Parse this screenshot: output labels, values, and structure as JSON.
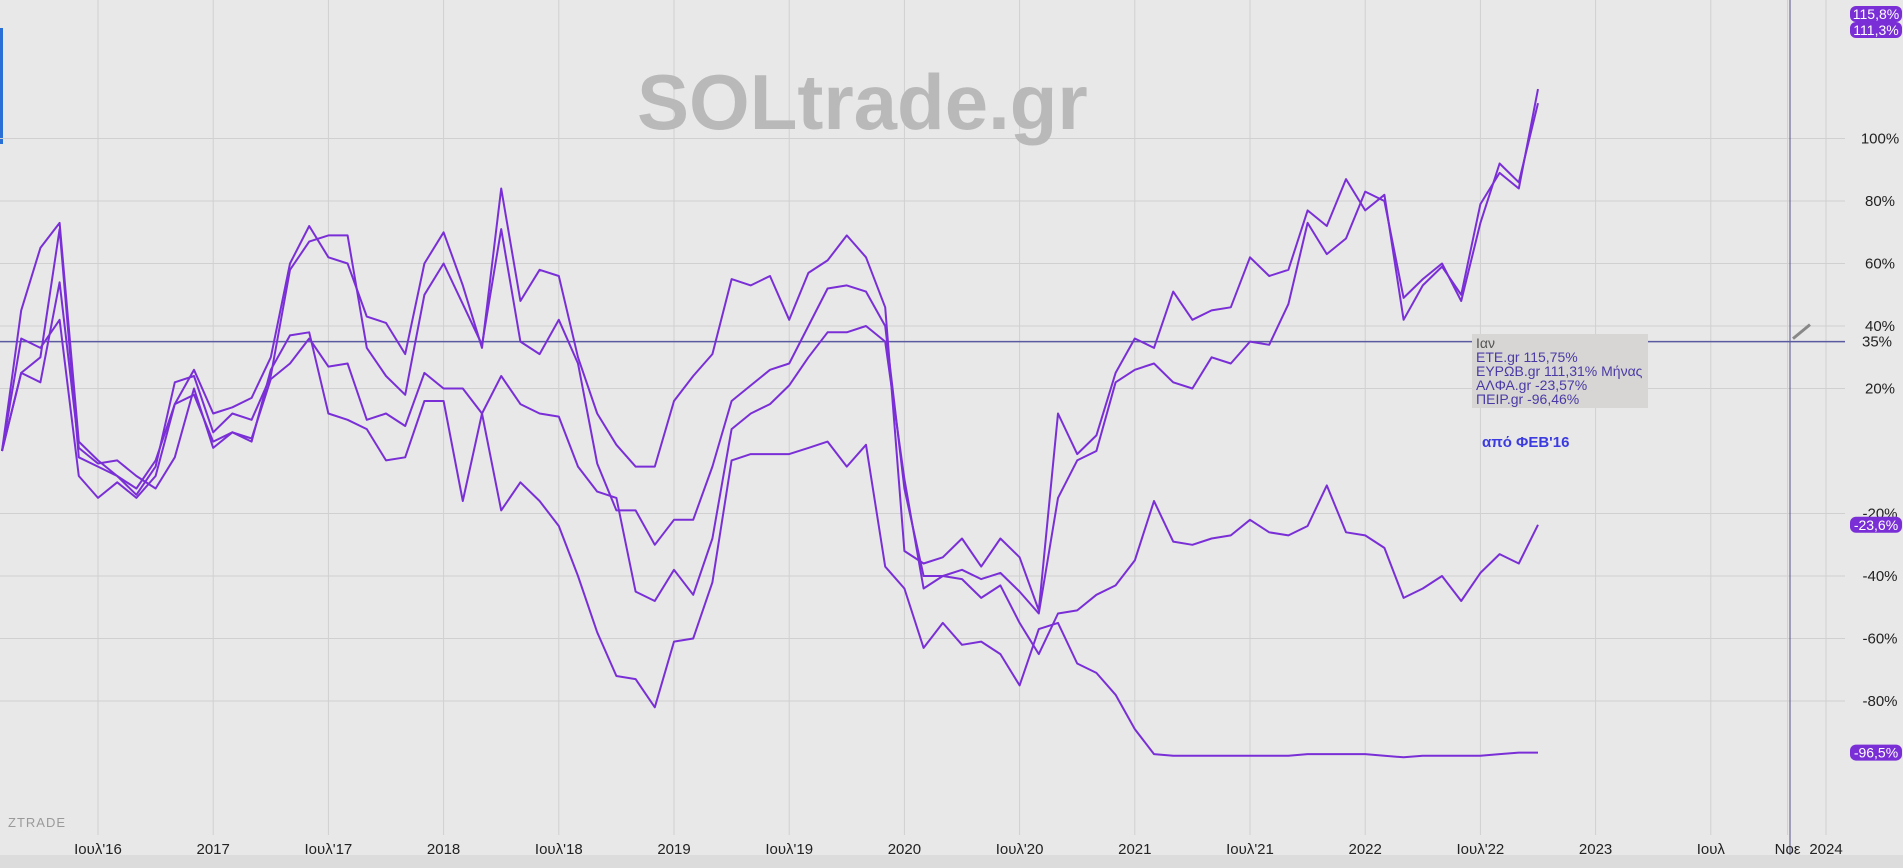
{
  "watermark": "SOLtrade.gr",
  "brand": "ZTRADE",
  "legend": {
    "title": "Ιαν",
    "items": [
      "ETE.gr 115,75%",
      "ΕΥΡΩΒ.gr 111,31% Μήνας",
      "ΑΛΦΑ.gr -23,57%",
      "ΠΕΙΡ.gr -96,46%"
    ]
  },
  "note": "από ΦΕΒ'16",
  "colors": {
    "series": "#7a2fd6",
    "hline": "#5a5aa0",
    "background": "#e8e8e8",
    "grid": "#d0d0d0"
  },
  "chart_data": {
    "type": "line",
    "ylim": [
      -100,
      115.8
    ],
    "y_ticks": [
      {
        "v": 100,
        "label": "100%"
      },
      {
        "v": 80,
        "label": "80%"
      },
      {
        "v": 60,
        "label": "60%"
      },
      {
        "v": 40,
        "label": "40%"
      },
      {
        "v": 20,
        "label": "20%"
      },
      {
        "v": -20,
        "label": "-20%"
      },
      {
        "v": -40,
        "label": "-40%"
      },
      {
        "v": -60,
        "label": "-60%"
      },
      {
        "v": -80,
        "label": "-80%"
      }
    ],
    "x_start": "2016-02",
    "x_ticks": [
      {
        "m": 5,
        "label": "Ιουλ'16"
      },
      {
        "m": 11,
        "label": "2017"
      },
      {
        "m": 17,
        "label": "Ιουλ'17"
      },
      {
        "m": 23,
        "label": "2018"
      },
      {
        "m": 29,
        "label": "Ιουλ'18"
      },
      {
        "m": 35,
        "label": "2019"
      },
      {
        "m": 41,
        "label": "Ιουλ'19"
      },
      {
        "m": 47,
        "label": "2020"
      },
      {
        "m": 53,
        "label": "Ιουλ'20"
      },
      {
        "m": 59,
        "label": "2021"
      },
      {
        "m": 65,
        "label": "Ιουλ'21"
      },
      {
        "m": 71,
        "label": "2022"
      },
      {
        "m": 77,
        "label": "Ιουλ'22"
      },
      {
        "m": 83,
        "label": "2023"
      },
      {
        "m": 89,
        "label": "Ιουλ"
      },
      {
        "m": 93,
        "label": "Νοε"
      },
      {
        "m": 95,
        "label": "2024"
      }
    ],
    "hline": {
      "value": 35,
      "label": "35%"
    },
    "badges": [
      {
        "value": 115.8,
        "label": "115,8%"
      },
      {
        "value": 111.3,
        "label": "111,3%"
      },
      {
        "value": -23.6,
        "label": "-23,6%"
      },
      {
        "value": -96.5,
        "label": "-96,5%"
      }
    ],
    "series": [
      {
        "name": "ETE.gr",
        "values": [
          0,
          45,
          65,
          73,
          3,
          -3,
          -8,
          -12,
          -3,
          15,
          26,
          12,
          14,
          17,
          30,
          60,
          72,
          62,
          60,
          43,
          41,
          31,
          60,
          70,
          53,
          33,
          84,
          48,
          58,
          56,
          30,
          12,
          2,
          -5,
          -5,
          16,
          24,
          31,
          55,
          53,
          56,
          42,
          57,
          61,
          69,
          62,
          46,
          -32,
          -36,
          -34,
          -28,
          -37,
          -28,
          -34,
          -51,
          12,
          -1,
          5,
          25,
          36,
          33,
          51,
          42,
          45,
          46,
          62,
          56,
          58,
          77,
          72,
          87,
          77,
          82,
          42,
          53,
          59,
          50,
          79,
          89,
          84,
          115.8
        ]
      },
      {
        "name": "ΕΥΡΩΒ.gr",
        "values": [
          0,
          25,
          30,
          71,
          -2,
          -5,
          -8,
          -14,
          -5,
          22,
          24,
          6,
          12,
          10,
          24,
          58,
          67,
          69,
          69,
          33,
          24,
          18,
          50,
          60,
          47,
          34,
          71,
          35,
          31,
          42,
          28,
          -4,
          -19,
          -19,
          -30,
          -22,
          -22,
          -5,
          16,
          21,
          26,
          28,
          40,
          52,
          53,
          51,
          40,
          -12,
          -40,
          -40,
          -38,
          -41,
          -39,
          -45,
          -52,
          -15,
          -3,
          0,
          22,
          26,
          28,
          22,
          20,
          30,
          28,
          35,
          34,
          47,
          73,
          63,
          68,
          83,
          80,
          49,
          55,
          60,
          48,
          73,
          92,
          86,
          111.3
        ]
      },
      {
        "name": "ΑΛΦΑ.gr",
        "values": [
          0,
          25,
          22,
          54,
          1,
          -4,
          -3,
          -8,
          -12,
          -2,
          20,
          1,
          6,
          4,
          23,
          28,
          36,
          27,
          28,
          10,
          12,
          8,
          25,
          20,
          20,
          12,
          24,
          15,
          12,
          11,
          -5,
          -13,
          -15,
          -45,
          -48,
          -38,
          -46,
          -28,
          7,
          12,
          15,
          21,
          30,
          38,
          38,
          40,
          35,
          -9,
          -44,
          -40,
          -41,
          -47,
          -43,
          -55,
          -65,
          -52,
          -51,
          -46,
          -43,
          -35,
          -16,
          -29,
          -30,
          -28,
          -27,
          -22,
          -26,
          -27,
          -24,
          -11,
          -26,
          -27,
          -31,
          -47,
          -44,
          -40,
          -48,
          -39,
          -33,
          -36,
          -23.6
        ]
      },
      {
        "name": "ΠΕΙΡ.gr",
        "values": [
          0,
          36,
          33,
          42,
          -8,
          -15,
          -10,
          -15,
          -8,
          15,
          18,
          3,
          6,
          3,
          26,
          37,
          38,
          12,
          10,
          7,
          -3,
          -2,
          16,
          16,
          -16,
          12,
          -19,
          -10,
          -16,
          -24,
          -40,
          -58,
          -72,
          -73,
          -82,
          -61,
          -60,
          -42,
          -3,
          -1,
          -1,
          -1,
          1,
          3,
          -5,
          2,
          -37,
          -44,
          -63,
          -55,
          -62,
          -61,
          -65,
          -75,
          -57,
          -55,
          -68,
          -71,
          -78,
          -89,
          -97,
          -97.5,
          -97.5,
          -97.5,
          -97.5,
          -97.5,
          -97.5,
          -97.5,
          -97,
          -97,
          -97,
          -97,
          -97.5,
          -98,
          -97.5,
          -97.5,
          -97.5,
          -97.5,
          -97,
          -96.5,
          -96.5
        ]
      }
    ]
  }
}
